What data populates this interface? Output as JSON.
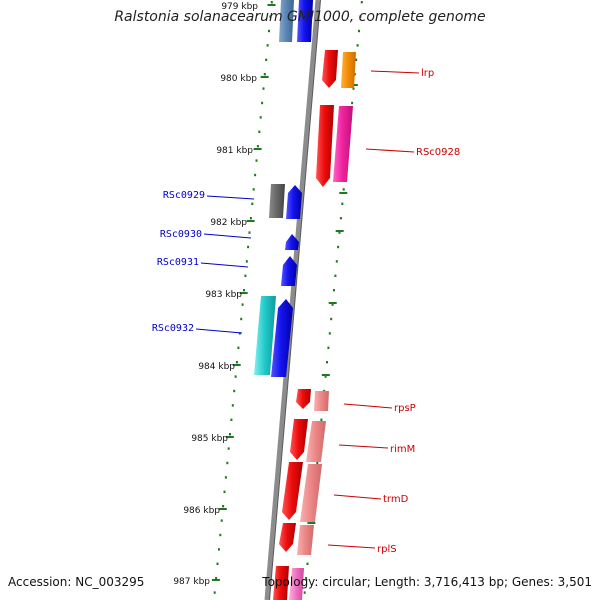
{
  "title": "Ralstonia solanacearum GMI1000, complete genome",
  "footer": {
    "accession_label": "Accession:",
    "accession": "NC_003295",
    "topology_label": "Topology:",
    "topology": "circular;",
    "length_label": "Length:",
    "length": "3,716,413 bp;",
    "genes_label": "Genes:",
    "genes": "3,501"
  },
  "colors": {
    "backbone": "#8c8c8c",
    "ticks": "#1e7a1e",
    "label_blue": "#0000cc",
    "label_red": "#cc0000"
  },
  "scale": {
    "unit": "kbp",
    "ticks": [
      "979 kbp",
      "980 kbp",
      "981 kbp",
      "982 kbp",
      "983 kbp",
      "984 kbp",
      "985 kbp",
      "986 kbp",
      "987 kbp"
    ]
  },
  "genes_left": [
    {
      "name": "RSc0929"
    },
    {
      "name": "RSc0930"
    },
    {
      "name": "RSc0931"
    },
    {
      "name": "RSc0932"
    }
  ],
  "genes_right": [
    {
      "name": "lrp"
    },
    {
      "name": "RSc0928"
    },
    {
      "name": "rpsP"
    },
    {
      "name": "rimM"
    },
    {
      "name": "trmD"
    },
    {
      "name": "rplS"
    }
  ]
}
